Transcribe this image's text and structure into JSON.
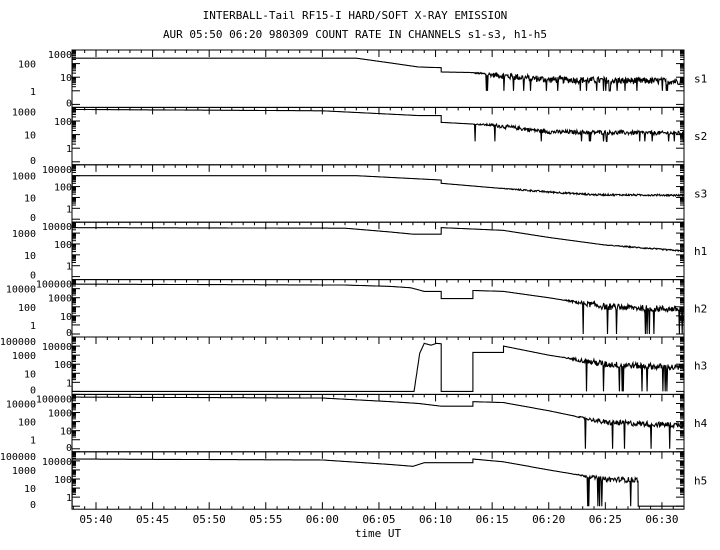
{
  "chart_data": {
    "type": "line",
    "title": "INTERBALL-Tail RF15-I HARD/SOFT X-RAY EMISSION",
    "subtitle": "AUR 05:50 06:20 980309  COUNT RATE IN CHANNELS s1-s3, h1-h5",
    "xlabel": "time UT",
    "x_units": "minutes after 05:00 UT",
    "xlim": [
      37.88,
      91.95
    ],
    "x_ticks": [
      {
        "t": 40,
        "label": "05:40"
      },
      {
        "t": 45,
        "label": "05:45"
      },
      {
        "t": 50,
        "label": "05:50"
      },
      {
        "t": 55,
        "label": "05:55"
      },
      {
        "t": 60,
        "label": "06:00"
      },
      {
        "t": 65,
        "label": "06:05"
      },
      {
        "t": 70,
        "label": "06:10"
      },
      {
        "t": 75,
        "label": "06:15"
      },
      {
        "t": 80,
        "label": "06:20"
      },
      {
        "t": 85,
        "label": "06:25"
      },
      {
        "t": 90,
        "label": "06:30"
      }
    ],
    "y_scale": "log10 count rate (0 plotted at lowest level)",
    "panels": [
      {
        "channel": "s1",
        "y_ticks": [
          "1000",
          "100",
          "10",
          "1",
          "0"
        ],
        "points": [
          [
            37.9,
            2.4
          ],
          [
            63,
            2.4
          ],
          [
            66,
            2.05
          ],
          [
            68.5,
            1.75
          ],
          [
            70.5,
            1.7
          ],
          [
            70.5,
            1.38
          ],
          [
            73,
            1.35
          ],
          [
            76,
            1.1
          ],
          [
            80,
            0.82
          ],
          [
            91.9,
            0.7
          ]
        ],
        "noise": {
          "start": 73,
          "amp": 0.25,
          "dip_prob": 0.05,
          "dip_to": 0
        }
      },
      {
        "channel": "s2",
        "y_ticks": [
          "1000",
          "100",
          "10",
          "1",
          "0"
        ],
        "points": [
          [
            37.9,
            2.85
          ],
          [
            60,
            2.75
          ],
          [
            68.5,
            2.4
          ],
          [
            70.5,
            2.4
          ],
          [
            70.5,
            1.9
          ],
          [
            75,
            1.7
          ],
          [
            80,
            1.2
          ],
          [
            91.9,
            1.1
          ]
        ],
        "noise": {
          "start": 73,
          "amp": 0.15,
          "dip_prob": 0.03,
          "dip_to": 0.5
        }
      },
      {
        "channel": "s3",
        "y_ticks": [
          "10000",
          "1000",
          "100",
          "10",
          "1",
          "0"
        ],
        "points": [
          [
            37.9,
            3.0
          ],
          [
            63,
            3.0
          ],
          [
            70.5,
            2.6
          ],
          [
            70.5,
            2.3
          ],
          [
            75,
            1.9
          ],
          [
            80,
            1.5
          ],
          [
            84,
            1.25
          ],
          [
            91.9,
            1.2
          ]
        ],
        "noise": {
          "start": 75,
          "amp": 0.08,
          "dip_prob": 0,
          "dip_to": 1
        }
      },
      {
        "channel": "h1",
        "y_ticks": [
          "10000",
          "1000",
          "100",
          "10",
          "1",
          "0"
        ],
        "points": [
          [
            37.9,
            3.5
          ],
          [
            62,
            3.45
          ],
          [
            66,
            3.1
          ],
          [
            68,
            2.9
          ],
          [
            70.5,
            2.9
          ],
          [
            70.5,
            3.5
          ],
          [
            76,
            3.25
          ],
          [
            80,
            2.6
          ],
          [
            85,
            1.9
          ],
          [
            91.9,
            1.35
          ]
        ],
        "noise": {
          "start": 84,
          "amp": 0.06,
          "dip_prob": 0,
          "dip_to": 1
        }
      },
      {
        "channel": "h2",
        "y_ticks": [
          "100000",
          "10000",
          "1000",
          "100",
          "10",
          "1",
          "0"
        ],
        "points": [
          [
            37.9,
            4.5
          ],
          [
            62,
            4.4
          ],
          [
            66,
            4.25
          ],
          [
            67.8,
            4.1
          ],
          [
            69,
            3.7
          ],
          [
            70.5,
            3.7
          ],
          [
            70.5,
            2.9
          ],
          [
            73.3,
            2.9
          ],
          [
            73.3,
            3.8
          ],
          [
            76,
            3.7
          ],
          [
            80,
            3.0
          ],
          [
            85,
            2.0
          ],
          [
            91.9,
            1.7
          ]
        ],
        "noise": {
          "start": 81,
          "amp": 0.35,
          "dip_prob": 0.04,
          "dip_to": -1
        }
      },
      {
        "channel": "h3",
        "y_ticks": [
          "100000",
          "10000",
          "1000",
          "100",
          "10",
          "1",
          "0"
        ],
        "points": [
          [
            37.9,
            -1
          ],
          [
            68.1,
            -1
          ],
          [
            68.6,
            3.2
          ],
          [
            69.0,
            4.3
          ],
          [
            69.6,
            4.1
          ],
          [
            70.1,
            4.3
          ],
          [
            70.5,
            4.25
          ],
          [
            70.5,
            -1
          ],
          [
            73.3,
            -1
          ],
          [
            73.3,
            3.3
          ],
          [
            76,
            3.3
          ],
          [
            76,
            4.0
          ],
          [
            80,
            3.0
          ],
          [
            85,
            2.0
          ],
          [
            91.9,
            1.6
          ]
        ],
        "noise": {
          "start": 81,
          "amp": 0.35,
          "dip_prob": 0.07,
          "dip_to": -1
        }
      },
      {
        "channel": "h4",
        "y_ticks": [
          "100000",
          "10000",
          "1000",
          "100",
          "10",
          "1",
          "0"
        ],
        "points": [
          [
            37.9,
            4.7
          ],
          [
            60,
            4.6
          ],
          [
            66,
            4.2
          ],
          [
            68.5,
            4.0
          ],
          [
            70.5,
            3.7
          ],
          [
            73.3,
            3.7
          ],
          [
            73.3,
            4.2
          ],
          [
            76,
            4.1
          ],
          [
            80,
            3.2
          ],
          [
            85,
            1.9
          ],
          [
            91.9,
            1.6
          ]
        ],
        "noise": {
          "start": 82,
          "amp": 0.3,
          "dip_prob": 0.04,
          "dip_to": -1
        }
      },
      {
        "channel": "h5",
        "y_ticks": [
          "100000",
          "10000",
          "1000",
          "100",
          "10",
          "1",
          "0"
        ],
        "points": [
          [
            37.9,
            4.2
          ],
          [
            60,
            4.1
          ],
          [
            66,
            3.6
          ],
          [
            68,
            3.4
          ],
          [
            69,
            3.8
          ],
          [
            73.3,
            3.8
          ],
          [
            73.3,
            4.2
          ],
          [
            76,
            3.9
          ],
          [
            80,
            3.0
          ],
          [
            85,
            1.96
          ],
          [
            87.9,
            1.9
          ],
          [
            87.9,
            -1
          ],
          [
            91.9,
            -1
          ]
        ],
        "noise": {
          "start": 82,
          "amp": 0.3,
          "dip_prob": 0.05,
          "dip_to": -1
        }
      }
    ]
  }
}
